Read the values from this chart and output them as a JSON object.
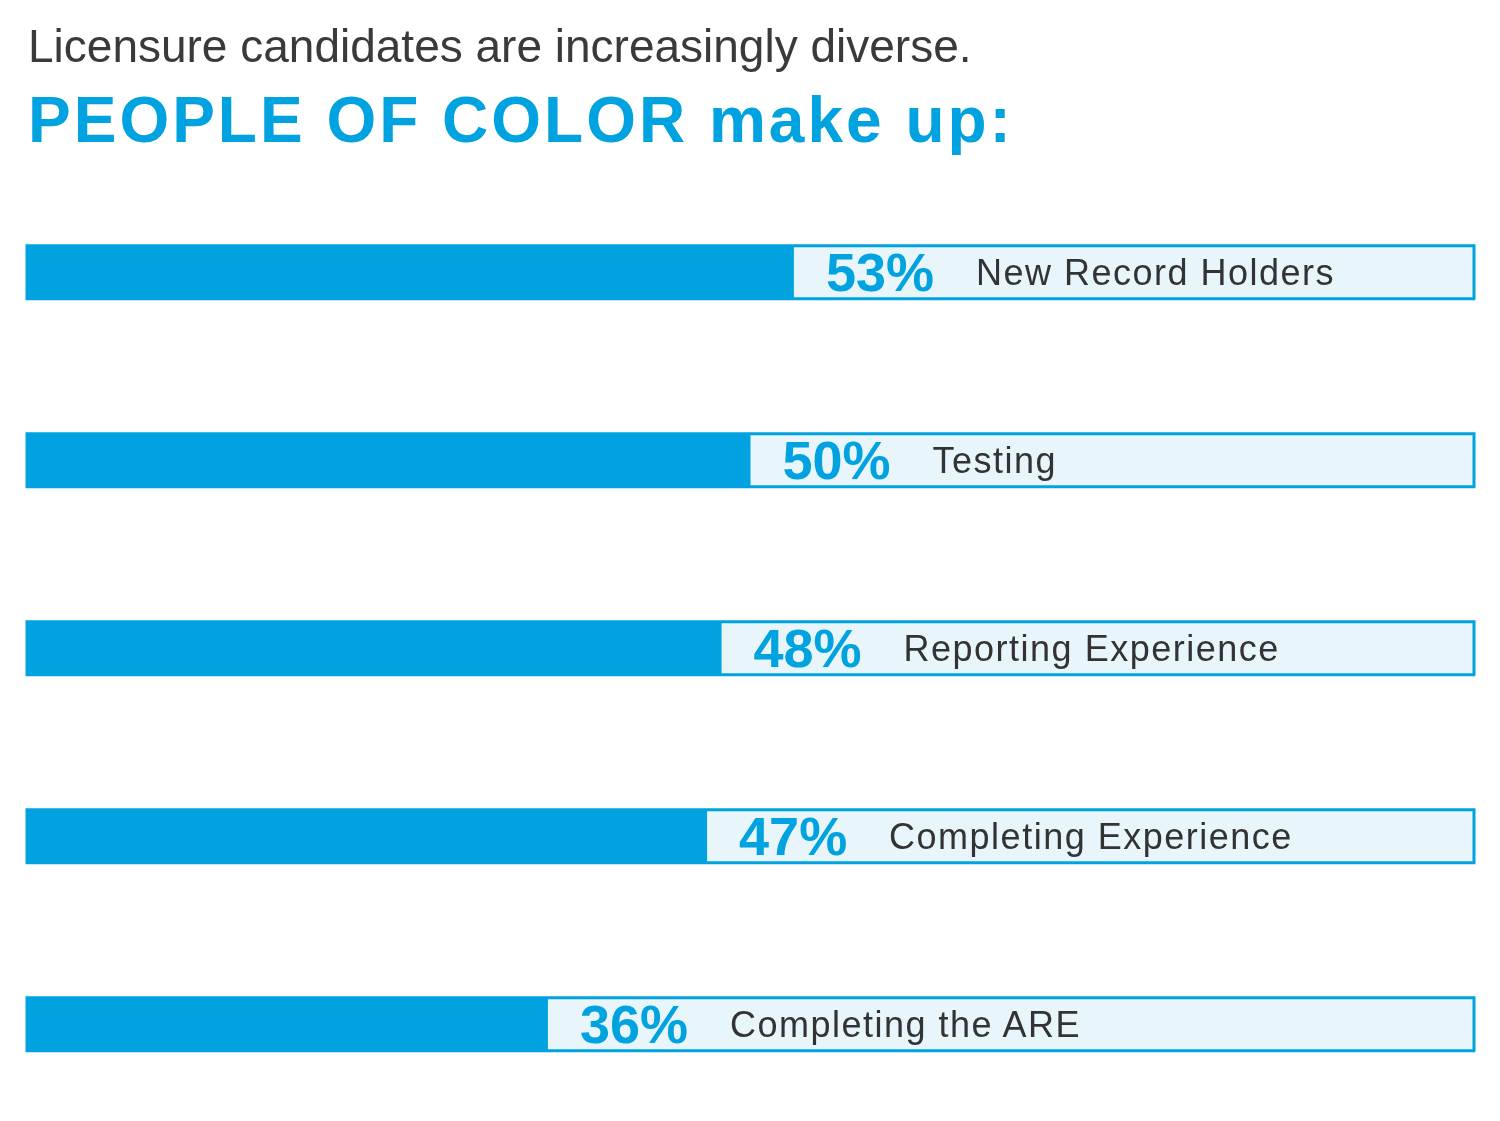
{
  "chart_data": {
    "type": "bar",
    "orientation": "horizontal",
    "title": "Licensure candidates are increasingly diverse.",
    "subtitle": "PEOPLE OF COLOR make up:",
    "categories": [
      "New Record Holders",
      "Testing",
      "Reporting Experience",
      "Completing Experience",
      "Completing the ARE"
    ],
    "values": [
      53,
      50,
      48,
      47,
      36
    ],
    "value_labels": [
      "53%",
      "50%",
      "48%",
      "47%",
      "36%"
    ],
    "color": "#00a3e0",
    "xlim": [
      0,
      100
    ],
    "tick_labels": "y",
    "grid": false,
    "legend": false
  }
}
